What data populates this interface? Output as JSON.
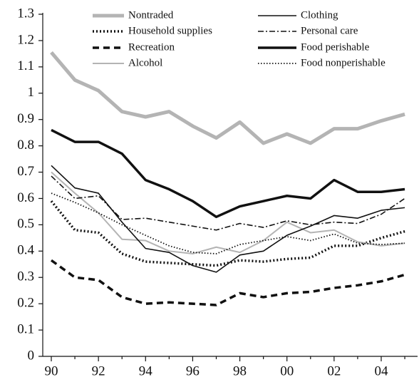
{
  "chart_data": {
    "type": "line",
    "categories": [
      "90",
      null,
      "92",
      null,
      "94",
      null,
      "96",
      null,
      "98",
      null,
      "00",
      null,
      "02",
      null,
      "04",
      null
    ],
    "ylim": [
      0,
      1.3
    ],
    "yticks": [
      0,
      0.1,
      0.2,
      0.3,
      0.4,
      0.5,
      0.6,
      0.7,
      0.8,
      0.9,
      1,
      1.1,
      1.2,
      1.3
    ],
    "series": [
      {
        "name": "Nontraded",
        "color": "#b4b4b4",
        "width": 5,
        "dash": "none",
        "values": [
          1.155,
          1.05,
          1.01,
          0.93,
          0.91,
          0.93,
          0.875,
          0.83,
          0.89,
          0.81,
          0.845,
          0.81,
          0.865,
          0.865,
          0.895,
          0.92
        ]
      },
      {
        "name": "Household supplies",
        "color": "#111111",
        "width": 3.5,
        "dash": "2 3",
        "values": [
          0.59,
          0.48,
          0.47,
          0.39,
          0.36,
          0.355,
          0.35,
          0.345,
          0.365,
          0.36,
          0.37,
          0.375,
          0.42,
          0.42,
          0.45,
          0.475
        ]
      },
      {
        "name": "Recreation",
        "color": "#111111",
        "width": 3.5,
        "dash": "9 6",
        "values": [
          0.365,
          0.3,
          0.29,
          0.225,
          0.2,
          0.205,
          0.2,
          0.195,
          0.24,
          0.225,
          0.24,
          0.245,
          0.26,
          0.27,
          0.285,
          0.31
        ]
      },
      {
        "name": "Alcohol",
        "color": "#b4b4b4",
        "width": 2,
        "dash": "none",
        "values": [
          0.7,
          0.62,
          0.545,
          0.445,
          0.44,
          0.4,
          0.39,
          0.415,
          0.395,
          0.44,
          0.51,
          0.47,
          0.48,
          0.435,
          0.42,
          0.43
        ]
      },
      {
        "name": "Clothing",
        "color": "#111111",
        "width": 1.6,
        "dash": "none",
        "values": [
          0.725,
          0.64,
          0.62,
          0.51,
          0.41,
          0.395,
          0.345,
          0.32,
          0.385,
          0.4,
          0.46,
          0.495,
          0.535,
          0.525,
          0.555,
          0.565
        ]
      },
      {
        "name": "Personal care",
        "color": "#111111",
        "width": 1.6,
        "dash": "8 3 2 3",
        "values": [
          0.685,
          0.6,
          0.61,
          0.52,
          0.525,
          0.51,
          0.495,
          0.48,
          0.505,
          0.49,
          0.515,
          0.5,
          0.51,
          0.505,
          0.54,
          0.6
        ]
      },
      {
        "name": "Food perishable",
        "color": "#111111",
        "width": 3.5,
        "dash": "none",
        "values": [
          0.86,
          0.815,
          0.815,
          0.77,
          0.67,
          0.635,
          0.59,
          0.53,
          0.57,
          0.59,
          0.61,
          0.6,
          0.67,
          0.625,
          0.625,
          0.635
        ]
      },
      {
        "name": "Food nonperishable",
        "color": "#111111",
        "width": 1.8,
        "dash": "1.5 2.5",
        "values": [
          0.62,
          0.585,
          0.545,
          0.5,
          0.46,
          0.42,
          0.395,
          0.39,
          0.425,
          0.44,
          0.455,
          0.44,
          0.465,
          0.43,
          0.425,
          0.43
        ]
      }
    ]
  }
}
